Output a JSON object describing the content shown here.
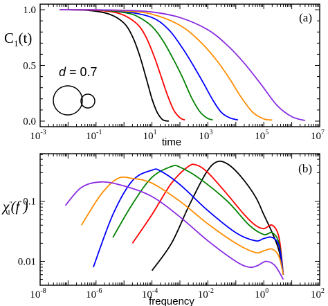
{
  "chart_data": [
    {
      "type": "line",
      "panel_label": "(a)",
      "title": "",
      "xlabel": "time",
      "ylabel": {
        "main": "C",
        "sub": "1",
        "arg": "(t)"
      },
      "x_scale": "log",
      "xlim": [
        0.001,
        10000000
      ],
      "ylim": [
        -0.05,
        1.05
      ],
      "x_ticks": [
        {
          "base": "10",
          "exp": "-3",
          "value": 0.001
        },
        {
          "base": "10",
          "exp": "-1",
          "value": 0.1
        },
        {
          "base": "10",
          "exp": "1",
          "value": 10
        },
        {
          "base": "10",
          "exp": "3",
          "value": 1000
        },
        {
          "base": "10",
          "exp": "5",
          "value": 100000
        },
        {
          "base": "10",
          "exp": "7",
          "value": 10000000
        }
      ],
      "y_ticks": [
        {
          "label": "0.0",
          "value": 0.0
        },
        {
          "label": "0.5",
          "value": 0.5
        },
        {
          "label": "1.0",
          "value": 1.0
        }
      ],
      "annotation": {
        "symbol": "d",
        "text": " = 0.7"
      },
      "series": [
        {
          "color": "#000000",
          "x": [
            0.005,
            0.05,
            0.3,
            1,
            2,
            3.5,
            6,
            10,
            14,
            18,
            25,
            40
          ],
          "y": [
            1.0,
            0.995,
            0.96,
            0.88,
            0.76,
            0.6,
            0.4,
            0.2,
            0.1,
            0.05,
            0.01,
            0.0
          ]
        },
        {
          "color": "#ff0000",
          "x": [
            0.005,
            0.05,
            0.3,
            1,
            3,
            6,
            12,
            20,
            35,
            60,
            100,
            150
          ],
          "y": [
            1.0,
            0.998,
            0.985,
            0.95,
            0.87,
            0.76,
            0.58,
            0.42,
            0.24,
            0.1,
            0.03,
            0.01
          ]
        },
        {
          "color": "#008000",
          "x": [
            0.005,
            0.1,
            1,
            3,
            10,
            25,
            60,
            120,
            250,
            500,
            900,
            1500
          ],
          "y": [
            1.0,
            0.998,
            0.975,
            0.94,
            0.85,
            0.72,
            0.55,
            0.4,
            0.22,
            0.09,
            0.03,
            0.01
          ]
        },
        {
          "color": "#0000ff",
          "x": [
            0.005,
            0.1,
            1,
            10,
            40,
            120,
            300,
            700,
            1500,
            3000,
            6000,
            12000
          ],
          "y": [
            1.0,
            0.998,
            0.985,
            0.93,
            0.82,
            0.66,
            0.5,
            0.34,
            0.19,
            0.08,
            0.03,
            0.01
          ]
        },
        {
          "color": "#ff8c00",
          "x": [
            0.005,
            0.1,
            1,
            10,
            100,
            500,
            2000,
            6000,
            15000,
            40000,
            100000,
            200000
          ],
          "y": [
            1.0,
            0.999,
            0.99,
            0.96,
            0.86,
            0.72,
            0.55,
            0.38,
            0.22,
            0.08,
            0.02,
            0.01
          ]
        },
        {
          "color": "#8a2be2",
          "x": [
            0.005,
            0.1,
            1,
            10,
            100,
            1000,
            5000,
            20000,
            80000,
            300000,
            1000000,
            3000000
          ],
          "y": [
            1.0,
            0.999,
            0.995,
            0.98,
            0.93,
            0.82,
            0.68,
            0.52,
            0.33,
            0.14,
            0.04,
            0.005
          ]
        }
      ]
    },
    {
      "type": "line",
      "panel_label": "(b)",
      "title": "",
      "xlabel": "frequency",
      "ylabel": {
        "main": "χ",
        "sub": "1",
        "sup": "′′",
        "arg": "(f )"
      },
      "x_scale": "log",
      "y_scale": "log",
      "xlim": [
        1e-08,
        100
      ],
      "ylim": [
        0.004,
        0.62
      ],
      "x_ticks": [
        {
          "base": "10",
          "exp": "-8",
          "value": 1e-08
        },
        {
          "base": "10",
          "exp": "-6",
          "value": 1e-06
        },
        {
          "base": "10",
          "exp": "-4",
          "value": 0.0001
        },
        {
          "base": "10",
          "exp": "-2",
          "value": 0.01
        },
        {
          "base": "10",
          "exp": "0",
          "value": 1
        },
        {
          "base": "10",
          "exp": "2",
          "value": 100
        }
      ],
      "y_ticks": [
        {
          "label": "0.01",
          "value": 0.01
        },
        {
          "label": "0.1",
          "value": 0.1
        }
      ],
      "series": [
        {
          "color": "#000000",
          "x": [
            0.0001,
            0.0005,
            0.002,
            0.008,
            0.02,
            0.05,
            0.15,
            0.5,
            1,
            2,
            3.5,
            5
          ],
          "y": [
            0.007,
            0.02,
            0.08,
            0.28,
            0.45,
            0.42,
            0.26,
            0.12,
            0.06,
            0.03,
            0.015,
            0.006
          ]
        },
        {
          "color": "#ff0000",
          "x": [
            2e-05,
            0.0001,
            0.0005,
            0.002,
            0.004,
            0.01,
            0.05,
            0.2,
            0.5,
            1,
            2,
            3.5,
            5
          ],
          "y": [
            0.02,
            0.06,
            0.2,
            0.38,
            0.4,
            0.3,
            0.13,
            0.06,
            0.04,
            0.035,
            0.04,
            0.025,
            0.006
          ]
        },
        {
          "color": "#008000",
          "x": [
            4e-06,
            2e-05,
            0.0001,
            0.0005,
            0.001,
            0.005,
            0.05,
            0.3,
            1,
            2,
            3.5,
            5
          ],
          "y": [
            0.025,
            0.09,
            0.25,
            0.38,
            0.37,
            0.24,
            0.1,
            0.04,
            0.028,
            0.03,
            0.02,
            0.006
          ]
        },
        {
          "color": "#0000ff",
          "x": [
            8e-07,
            4e-06,
            2e-05,
            0.0001,
            0.0002,
            0.001,
            0.01,
            0.1,
            0.5,
            1,
            2,
            3.5,
            5
          ],
          "y": [
            0.008,
            0.06,
            0.22,
            0.33,
            0.32,
            0.19,
            0.07,
            0.03,
            0.022,
            0.024,
            0.025,
            0.018,
            0.006
          ]
        },
        {
          "color": "#ff8c00",
          "x": [
            3e-07,
            1.5e-06,
            6e-06,
            2e-05,
            0.0001,
            0.001,
            0.01,
            0.1,
            0.5,
            1,
            2,
            3.5,
            5
          ],
          "y": [
            0.04,
            0.13,
            0.24,
            0.24,
            0.2,
            0.1,
            0.042,
            0.02,
            0.014,
            0.015,
            0.016,
            0.012,
            0.006
          ]
        },
        {
          "color": "#8a2be2",
          "x": [
            8e-08,
            3e-07,
            1.5e-06,
            1e-05,
            0.0001,
            0.001,
            0.01,
            0.1,
            0.3,
            0.6,
            1.2,
            2.5,
            5
          ],
          "y": [
            0.085,
            0.17,
            0.21,
            0.18,
            0.12,
            0.055,
            0.022,
            0.01,
            0.008,
            0.0085,
            0.01,
            0.0085,
            0.005
          ]
        }
      ]
    }
  ]
}
